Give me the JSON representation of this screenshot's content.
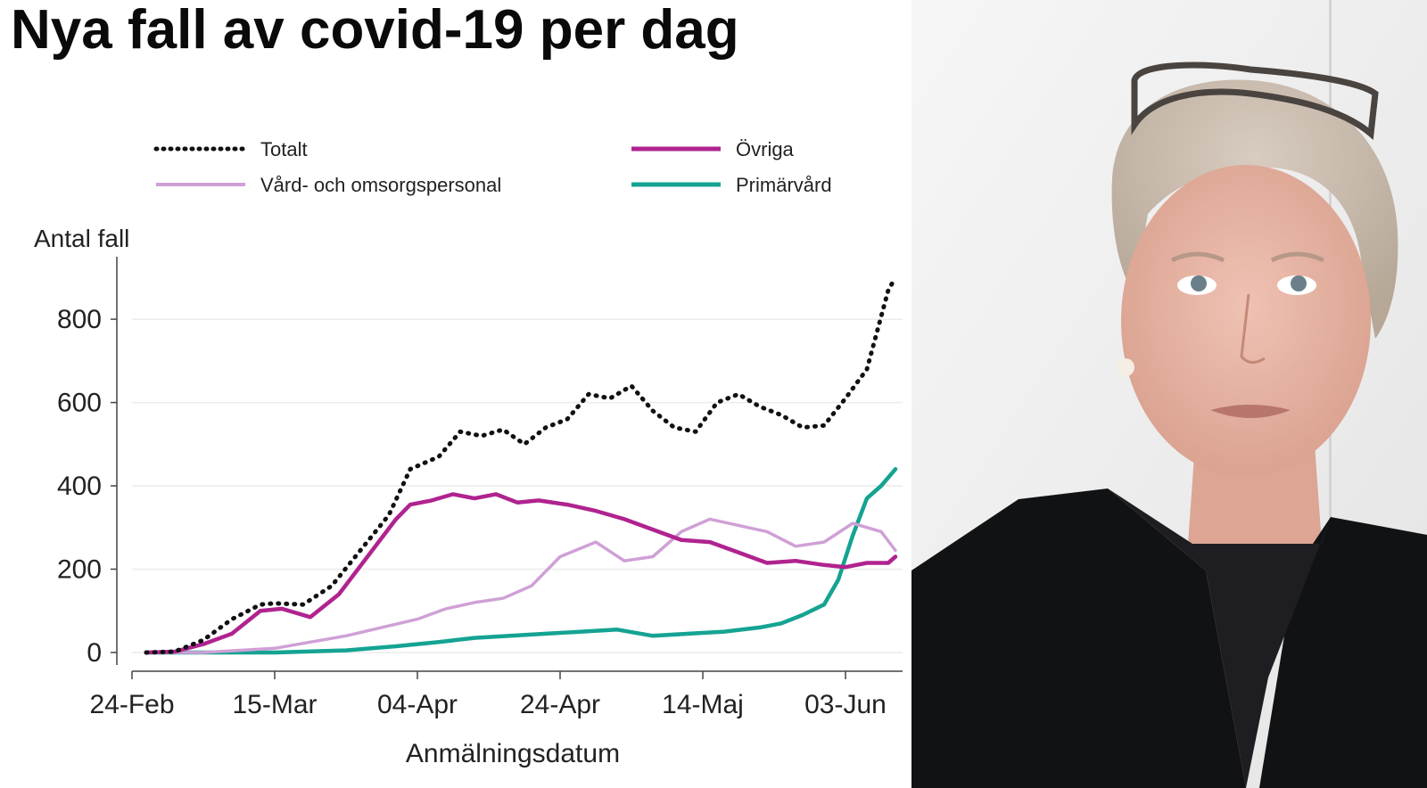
{
  "title": "Nya fall av covid-19 per dag",
  "chart_data": {
    "type": "line",
    "title": "Nya fall av covid-19 per dag",
    "ylabel": "Antal fall",
    "xlabel": "Anmälningsdatum",
    "xlim": [
      "2020-02-24",
      "2020-06-11"
    ],
    "ylim": [
      -30,
      950
    ],
    "yticks": [
      0,
      200,
      400,
      600,
      800
    ],
    "xticks": [
      {
        "date": "2020-02-24",
        "label": "24-Feb"
      },
      {
        "date": "2020-03-15",
        "label": "15-Mar"
      },
      {
        "date": "2020-04-04",
        "label": "04-Apr"
      },
      {
        "date": "2020-04-24",
        "label": "24-Apr"
      },
      {
        "date": "2020-05-14",
        "label": "14-Maj"
      },
      {
        "date": "2020-06-03",
        "label": "03-Jun"
      }
    ],
    "grid": true,
    "legend": "top",
    "series": [
      {
        "name": "Totalt",
        "color": "#111111",
        "style": "dotted",
        "x": [
          "2020-02-26",
          "2020-03-01",
          "2020-03-05",
          "2020-03-09",
          "2020-03-13",
          "2020-03-15",
          "2020-03-19",
          "2020-03-23",
          "2020-03-27",
          "2020-03-31",
          "2020-04-03",
          "2020-04-07",
          "2020-04-10",
          "2020-04-13",
          "2020-04-16",
          "2020-04-19",
          "2020-04-22",
          "2020-04-25",
          "2020-04-28",
          "2020-05-01",
          "2020-05-04",
          "2020-05-07",
          "2020-05-10",
          "2020-05-13",
          "2020-05-16",
          "2020-05-19",
          "2020-05-22",
          "2020-05-25",
          "2020-05-28",
          "2020-05-31",
          "2020-06-03",
          "2020-06-06",
          "2020-06-09",
          "2020-06-10"
        ],
        "y": [
          0,
          2,
          30,
          80,
          115,
          118,
          115,
          160,
          245,
          330,
          440,
          470,
          530,
          520,
          535,
          500,
          540,
          560,
          620,
          610,
          640,
          580,
          540,
          530,
          600,
          620,
          590,
          570,
          540,
          545,
          610,
          680,
          870,
          900
        ]
      },
      {
        "name": "Övriga",
        "color": "#b0238f",
        "style": "solid",
        "x": [
          "2020-02-26",
          "2020-03-01",
          "2020-03-05",
          "2020-03-09",
          "2020-03-13",
          "2020-03-16",
          "2020-03-20",
          "2020-03-24",
          "2020-03-28",
          "2020-04-01",
          "2020-04-03",
          "2020-04-06",
          "2020-04-09",
          "2020-04-12",
          "2020-04-15",
          "2020-04-18",
          "2020-04-21",
          "2020-04-25",
          "2020-04-29",
          "2020-05-03",
          "2020-05-07",
          "2020-05-11",
          "2020-05-15",
          "2020-05-19",
          "2020-05-23",
          "2020-05-27",
          "2020-05-31",
          "2020-06-03",
          "2020-06-06",
          "2020-06-09",
          "2020-06-10"
        ],
        "y": [
          0,
          2,
          20,
          45,
          100,
          105,
          85,
          140,
          230,
          320,
          355,
          365,
          380,
          370,
          380,
          360,
          365,
          355,
          340,
          320,
          295,
          270,
          265,
          240,
          215,
          220,
          210,
          205,
          215,
          215,
          230
        ]
      },
      {
        "name": "Vård- och omsorgspersonal",
        "color": "#cfa0d6",
        "style": "solid",
        "x": [
          "2020-02-26",
          "2020-03-05",
          "2020-03-10",
          "2020-03-15",
          "2020-03-20",
          "2020-03-25",
          "2020-03-30",
          "2020-04-04",
          "2020-04-08",
          "2020-04-12",
          "2020-04-16",
          "2020-04-20",
          "2020-04-24",
          "2020-04-29",
          "2020-05-03",
          "2020-05-07",
          "2020-05-11",
          "2020-05-15",
          "2020-05-19",
          "2020-05-23",
          "2020-05-27",
          "2020-05-31",
          "2020-06-04",
          "2020-06-08",
          "2020-06-10"
        ],
        "y": [
          0,
          0,
          5,
          10,
          25,
          40,
          60,
          80,
          105,
          120,
          130,
          160,
          230,
          265,
          220,
          230,
          290,
          320,
          305,
          290,
          255,
          265,
          310,
          290,
          245
        ]
      },
      {
        "name": "Primärvård",
        "color": "#15a392",
        "style": "solid",
        "x": [
          "2020-02-26",
          "2020-03-05",
          "2020-03-15",
          "2020-03-25",
          "2020-04-01",
          "2020-04-07",
          "2020-04-12",
          "2020-04-17",
          "2020-04-22",
          "2020-04-27",
          "2020-05-02",
          "2020-05-07",
          "2020-05-12",
          "2020-05-17",
          "2020-05-22",
          "2020-05-25",
          "2020-05-28",
          "2020-05-31",
          "2020-06-02",
          "2020-06-04",
          "2020-06-06",
          "2020-06-08",
          "2020-06-10"
        ],
        "y": [
          0,
          0,
          0,
          5,
          15,
          25,
          35,
          40,
          45,
          50,
          55,
          40,
          45,
          50,
          60,
          70,
          90,
          115,
          175,
          280,
          370,
          400,
          440
        ]
      }
    ]
  }
}
